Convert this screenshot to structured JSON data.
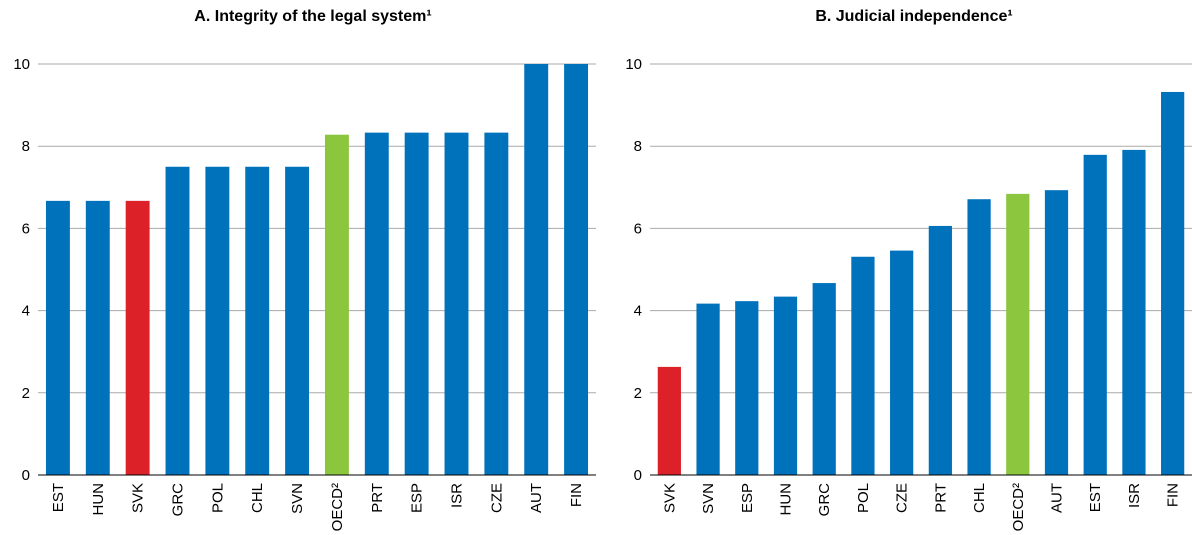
{
  "colors": {
    "default_bar": "#0072bc",
    "highlight_bar": "#dc2228",
    "oecd_bar": "#8cc63f",
    "grid": "#aaaaaa"
  },
  "chart_data": [
    {
      "type": "bar",
      "title": "A. Integrity of the legal system¹",
      "categories": [
        "EST",
        "HUN",
        "SVK",
        "GRC",
        "POL",
        "CHL",
        "SVN",
        "OECD²",
        "PRT",
        "ESP",
        "ISR",
        "CZE",
        "AUT",
        "FIN"
      ],
      "values": [
        6.67,
        6.67,
        6.67,
        7.5,
        7.5,
        7.5,
        7.5,
        8.28,
        8.33,
        8.33,
        8.33,
        8.33,
        10.0,
        10.0
      ],
      "bar_colors": [
        "default",
        "default",
        "highlight",
        "default",
        "default",
        "default",
        "default",
        "oecd",
        "default",
        "default",
        "default",
        "default",
        "default",
        "default"
      ],
      "ylim": [
        0,
        10
      ],
      "yticks": [
        0,
        2,
        4,
        6,
        8,
        10
      ],
      "grid": true,
      "xlabel": "",
      "ylabel": ""
    },
    {
      "type": "bar",
      "title": "B. Judicial independence¹",
      "categories": [
        "SVK",
        "SVN",
        "ESP",
        "HUN",
        "GRC",
        "POL",
        "CZE",
        "PRT",
        "CHL",
        "OECD²",
        "AUT",
        "EST",
        "ISR",
        "FIN"
      ],
      "values": [
        2.63,
        4.17,
        4.23,
        4.34,
        4.67,
        5.31,
        5.46,
        6.06,
        6.71,
        6.84,
        6.93,
        7.79,
        7.91,
        9.32
      ],
      "bar_colors": [
        "highlight",
        "default",
        "default",
        "default",
        "default",
        "default",
        "default",
        "default",
        "default",
        "oecd",
        "default",
        "default",
        "default",
        "default"
      ],
      "ylim": [
        0,
        10
      ],
      "yticks": [
        0,
        2,
        4,
        6,
        8,
        10
      ],
      "grid": true,
      "xlabel": "",
      "ylabel": ""
    }
  ]
}
